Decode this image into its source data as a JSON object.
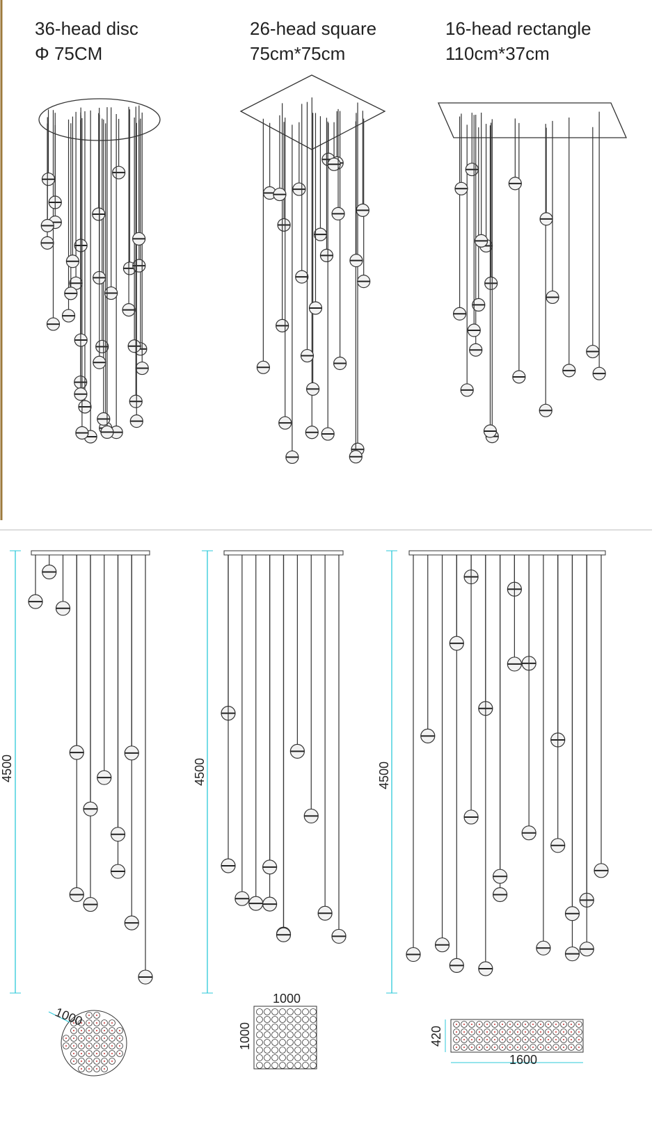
{
  "products": [
    {
      "name": "36-head disc",
      "size": "Φ 75CM"
    },
    {
      "name": "26-head square",
      "size": "75cm*75cm"
    },
    {
      "name": "16-head rectangle",
      "size": "110cm*37cm"
    }
  ],
  "elevations": [
    {
      "height": "4500"
    },
    {
      "height": "4500"
    },
    {
      "height": "4500"
    }
  ],
  "plans": [
    {
      "diameter": "1000"
    },
    {
      "width": "1000",
      "depth": "1000"
    },
    {
      "depth": "420",
      "width": "1600"
    }
  ]
}
